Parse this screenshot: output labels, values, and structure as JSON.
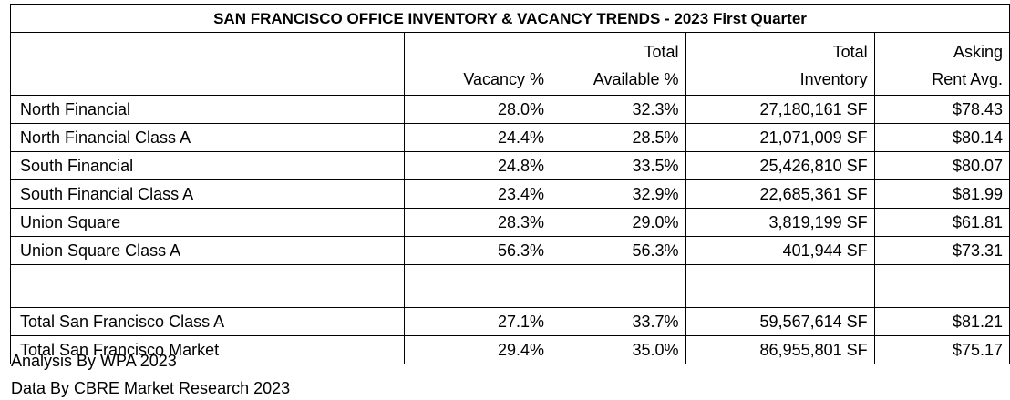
{
  "title": "SAN FRANCISCO OFFICE INVENTORY & VACANCY TRENDS - 2023 First Quarter",
  "headers": [
    {
      "line1": "",
      "line2": "Vacancy %"
    },
    {
      "line1": "Total",
      "line2": "Available %"
    },
    {
      "line1": "Total",
      "line2": "Inventory"
    },
    {
      "line1": "Asking",
      "line2": "Rent Avg."
    }
  ],
  "rows": [
    {
      "label": "North Financial",
      "vacancy": "28.0%",
      "available": "32.3%",
      "inventory": "27,180,161 SF",
      "rent": "$78.43"
    },
    {
      "label": "North Financial Class A",
      "vacancy": "24.4%",
      "available": "28.5%",
      "inventory": "21,071,009 SF",
      "rent": "$80.14"
    },
    {
      "label": "South Financial",
      "vacancy": "24.8%",
      "available": "33.5%",
      "inventory": "25,426,810 SF",
      "rent": "$80.07"
    },
    {
      "label": "South Financial Class A",
      "vacancy": "23.4%",
      "available": "32.9%",
      "inventory": "22,685,361 SF",
      "rent": "$81.99"
    },
    {
      "label": "Union Square",
      "vacancy": "28.3%",
      "available": "29.0%",
      "inventory": "3,819,199 SF",
      "rent": "$61.81"
    },
    {
      "label": "Union Square Class A",
      "vacancy": "56.3%",
      "available": "56.3%",
      "inventory": "401,944 SF",
      "rent": "$73.31"
    }
  ],
  "totals": [
    {
      "label": "Total San Francisco Class A",
      "vacancy": "27.1%",
      "available": "33.7%",
      "inventory": "59,567,614 SF",
      "rent": "$81.21"
    },
    {
      "label": "Total San Francisco Market",
      "vacancy": "29.4%",
      "available": "35.0%",
      "inventory": "86,955,801 SF",
      "rent": "$75.17"
    }
  ],
  "footer": {
    "analysis": "Analysis By WPA 2023",
    "data_source": "Data By CBRE Market Research 2023"
  }
}
